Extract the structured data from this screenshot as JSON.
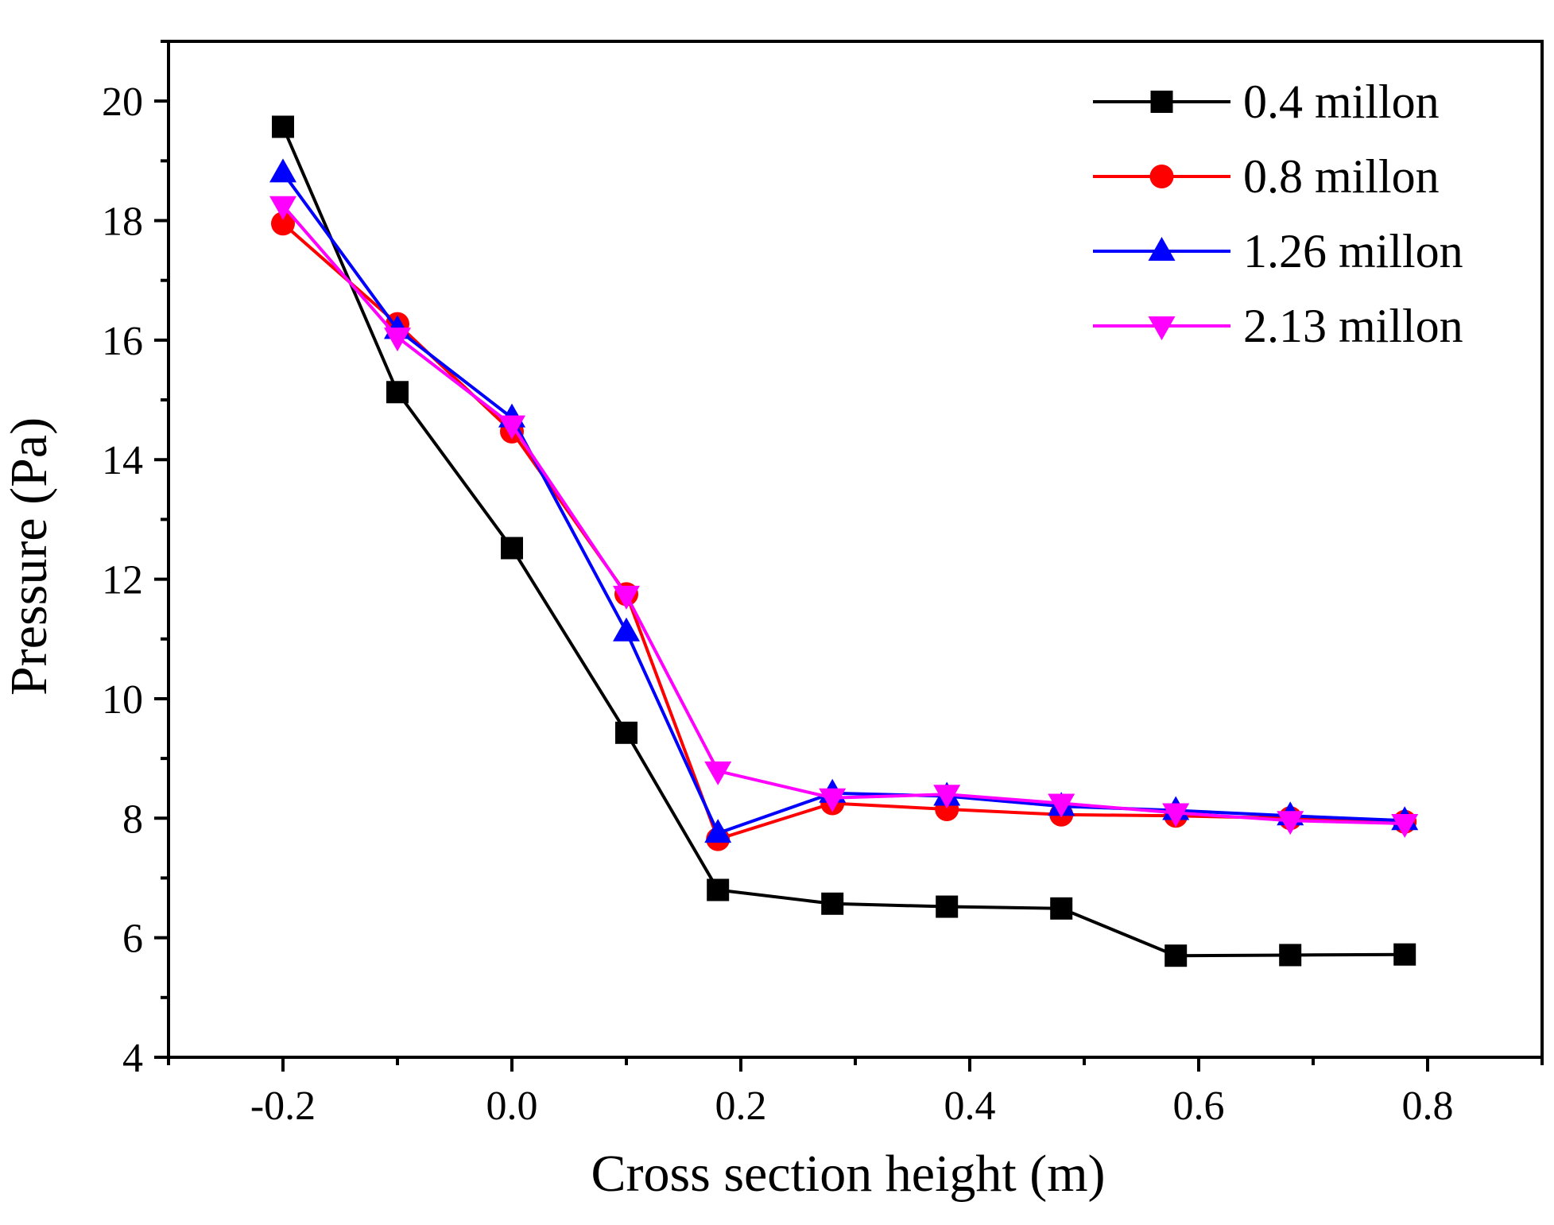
{
  "chart_data": {
    "type": "line",
    "title": "",
    "xlabel": "Cross section height (m)",
    "ylabel": "Pressure (Pa)",
    "xlim": [
      -0.3,
      0.9
    ],
    "ylim": [
      4,
      21
    ],
    "x_ticks": [
      -0.2,
      0.0,
      0.2,
      0.4,
      0.6,
      0.8
    ],
    "x_tick_labels": [
      "-0.2",
      "0.0",
      "0.2",
      "0.4",
      "0.6",
      "0.8"
    ],
    "y_ticks": [
      4,
      6,
      8,
      10,
      12,
      14,
      16,
      18,
      20
    ],
    "y_tick_labels": [
      "4",
      "6",
      "8",
      "10",
      "12",
      "14",
      "16",
      "18",
      "20"
    ],
    "legend_position": "top-right",
    "x": [
      -0.2,
      -0.1,
      0.0,
      0.1,
      0.18,
      0.28,
      0.38,
      0.48,
      0.58,
      0.68,
      0.78
    ],
    "series": [
      {
        "name": "0.4 millon",
        "color": "#000000",
        "marker": "square",
        "values": [
          19.57,
          15.13,
          12.52,
          9.43,
          6.8,
          6.57,
          6.52,
          6.49,
          5.7,
          5.71,
          5.72
        ]
      },
      {
        "name": "0.8 millon",
        "color": "#ff0000",
        "marker": "circle",
        "values": [
          17.95,
          16.27,
          14.47,
          11.75,
          7.65,
          8.25,
          8.15,
          8.06,
          8.04,
          8.0,
          7.94
        ]
      },
      {
        "name": "1.26 millon",
        "color": "#0000ff",
        "marker": "triangle-up",
        "values": [
          18.8,
          16.18,
          14.7,
          11.12,
          7.75,
          8.42,
          8.37,
          8.2,
          8.13,
          8.04,
          7.96
        ]
      },
      {
        "name": "2.13 millon",
        "color": "#ff00ff",
        "marker": "triangle-down",
        "values": [
          18.25,
          16.05,
          14.58,
          11.73,
          8.79,
          8.34,
          8.4,
          8.25,
          8.09,
          7.96,
          7.91
        ]
      }
    ]
  }
}
